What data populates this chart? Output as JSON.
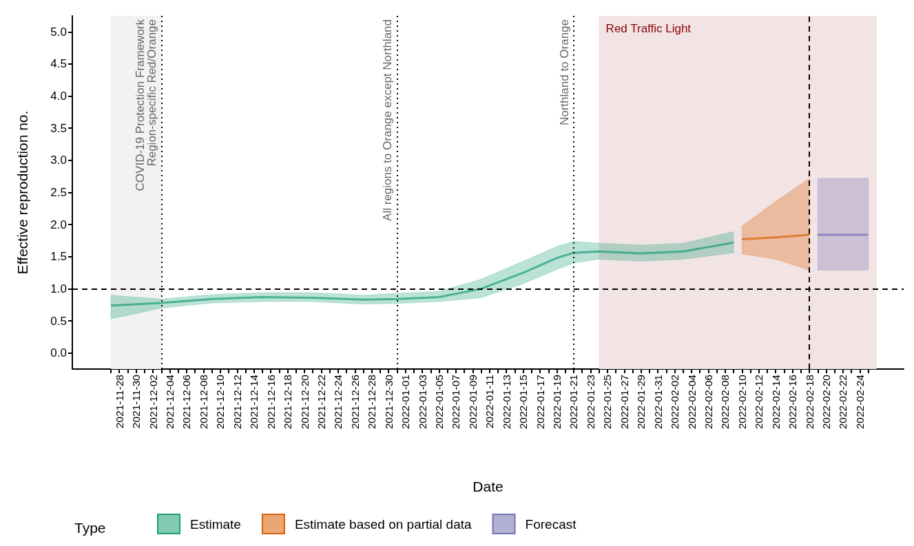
{
  "chart_data": {
    "type": "line",
    "xlabel": "Date",
    "ylabel": "Effective reproduction no.",
    "legend_title": "Type",
    "legend": "bottom",
    "grid": false,
    "xlim": [
      "2021-11-22T10:00",
      "2022-03-01T05:00"
    ],
    "ylim": [
      -0.25,
      5.25
    ],
    "yticks": [
      {
        "value": 0,
        "label": "0.0"
      },
      {
        "value": 0.5,
        "label": "0.5"
      },
      {
        "value": 1,
        "label": "1.0"
      },
      {
        "value": 1.5,
        "label": "1.5"
      },
      {
        "value": 2,
        "label": "2.0"
      },
      {
        "value": 2.5,
        "label": "2.5"
      },
      {
        "value": 3,
        "label": "3.0"
      },
      {
        "value": 3.5,
        "label": "3.5"
      },
      {
        "value": 4,
        "label": "4.0"
      },
      {
        "value": 4.5,
        "label": "4.5"
      },
      {
        "value": 5,
        "label": "5.0"
      }
    ],
    "xticks": [
      {
        "value": "2021-11-27",
        "label": null
      },
      "2021-11-28",
      {
        "value": "2021-11-29",
        "label": null
      },
      "2021-11-30",
      {
        "value": "2021-12-01",
        "label": null
      },
      "2021-12-02",
      {
        "value": "2021-12-03",
        "label": null
      },
      "2021-12-04",
      {
        "value": "2021-12-05",
        "label": null
      },
      "2021-12-06",
      {
        "value": "2021-12-07",
        "label": null
      },
      "2021-12-08",
      {
        "value": "2021-12-09",
        "label": null
      },
      "2021-12-10",
      {
        "value": "2021-12-11",
        "label": null
      },
      "2021-12-12",
      {
        "value": "2021-12-13",
        "label": null
      },
      "2021-12-14",
      {
        "value": "2021-12-15",
        "label": null
      },
      "2021-12-16",
      {
        "value": "2021-12-17",
        "label": null
      },
      "2021-12-18",
      {
        "value": "2021-12-19",
        "label": null
      },
      "2021-12-20",
      {
        "value": "2021-12-21",
        "label": null
      },
      "2021-12-22",
      {
        "value": "2021-12-23",
        "label": null
      },
      "2021-12-24",
      {
        "value": "2021-12-25",
        "label": null
      },
      "2021-12-26",
      {
        "value": "2021-12-27",
        "label": null
      },
      "2021-12-28",
      {
        "value": "2021-12-29",
        "label": null
      },
      "2021-12-30",
      {
        "value": "2021-12-31",
        "label": null
      },
      "2022-01-01",
      {
        "value": "2022-01-02",
        "label": null
      },
      "2022-01-03",
      {
        "value": "2022-01-04",
        "label": null
      },
      "2022-01-05",
      {
        "value": "2022-01-06",
        "label": null
      },
      "2022-01-07",
      {
        "value": "2022-01-08",
        "label": null
      },
      "2022-01-09",
      {
        "value": "2022-01-10",
        "label": null
      },
      "2022-01-11",
      {
        "value": "2022-01-12",
        "label": null
      },
      "2022-01-13",
      {
        "value": "2022-01-14",
        "label": null
      },
      "2022-01-15",
      {
        "value": "2022-01-16",
        "label": null
      },
      "2022-01-17",
      {
        "value": "2022-01-18",
        "label": null
      },
      "2022-01-19",
      {
        "value": "2022-01-20",
        "label": null
      },
      "2022-01-21",
      {
        "value": "2022-01-22",
        "label": null
      },
      "2022-01-23",
      {
        "value": "2022-01-24",
        "label": null
      },
      "2022-01-25",
      {
        "value": "2022-01-26",
        "label": null
      },
      "2022-01-27",
      {
        "value": "2022-01-28",
        "label": null
      },
      "2022-01-29",
      {
        "value": "2022-01-30",
        "label": null
      },
      "2022-01-31",
      {
        "value": "2022-02-01",
        "label": null
      },
      "2022-02-02",
      {
        "value": "2022-02-03",
        "label": null
      },
      "2022-02-04",
      {
        "value": "2022-02-05",
        "label": null
      },
      "2022-02-06",
      {
        "value": "2022-02-07",
        "label": null
      },
      "2022-02-08",
      {
        "value": "2022-02-09",
        "label": null
      },
      "2022-02-10",
      {
        "value": "2022-02-11",
        "label": null
      },
      "2022-02-12",
      {
        "value": "2022-02-13",
        "label": null
      },
      "2022-02-14",
      {
        "value": "2022-02-15",
        "label": null
      },
      "2022-02-16",
      {
        "value": "2022-02-17",
        "label": null
      },
      "2022-02-18",
      {
        "value": "2022-02-19",
        "label": null
      },
      "2022-02-20",
      {
        "value": "2022-02-21",
        "label": null
      },
      "2022-02-22",
      {
        "value": "2022-02-23",
        "label": null
      },
      "2022-02-24",
      {
        "value": "2022-02-25",
        "label": null
      }
    ],
    "series": [
      {
        "name": "Estimate",
        "type": "line",
        "color": "#1b9e77",
        "x": [
          "2021-11-27",
          "2021-12-03",
          "2021-12-09",
          "2021-12-15",
          "2021-12-21",
          "2021-12-27",
          "2021-12-31",
          "2022-01-05",
          "2022-01-10",
          "2022-01-15",
          "2022-01-19",
          "2022-01-21",
          "2022-01-24",
          "2022-01-29",
          "2022-02-03",
          "2022-02-09"
        ],
        "values": [
          0.74,
          0.78,
          0.84,
          0.87,
          0.86,
          0.83,
          0.84,
          0.87,
          1.0,
          1.25,
          1.48,
          1.56,
          1.58,
          1.55,
          1.58,
          1.72
        ],
        "lower": [
          0.53,
          0.7,
          0.78,
          0.8,
          0.8,
          0.76,
          0.77,
          0.8,
          0.86,
          1.08,
          1.3,
          1.4,
          1.46,
          1.43,
          1.46,
          1.56
        ],
        "upper": [
          0.9,
          0.84,
          0.91,
          0.94,
          0.94,
          0.9,
          0.93,
          0.96,
          1.15,
          1.43,
          1.66,
          1.74,
          1.71,
          1.68,
          1.71,
          1.89
        ]
      },
      {
        "name": "Estimate based on partial data",
        "type": "line",
        "color": "#d95f02",
        "x": [
          "2022-02-10",
          "2022-02-14",
          "2022-02-18"
        ],
        "values": [
          1.77,
          1.8,
          1.84
        ],
        "lower": [
          1.54,
          1.46,
          1.29
        ],
        "upper": [
          1.98,
          2.36,
          2.72
        ]
      },
      {
        "name": "Forecast",
        "type": "line",
        "color": "#7570b3",
        "x": [
          "2022-02-19",
          "2022-02-25"
        ],
        "values": [
          1.84,
          1.84
        ],
        "lower": [
          1.29,
          1.29
        ],
        "upper": [
          2.72,
          2.72
        ]
      }
    ],
    "ref_lines": [
      {
        "axis": "y",
        "value": 1,
        "line_style": "dashed",
        "color": "#000000"
      },
      {
        "axis": "x",
        "value": "2021-12-03",
        "label": "COVID-19 Protection Framework\nRegion-specific Red/Orange",
        "line_style": "dotted",
        "color": "#000000"
      },
      {
        "axis": "x",
        "value": "2021-12-31",
        "label": "All regions to Orange except Northland",
        "line_style": "dotted",
        "color": "#000000"
      },
      {
        "axis": "x",
        "value": "2022-01-21",
        "label": "Northland to Orange",
        "line_style": "dotted",
        "color": "#000000"
      },
      {
        "axis": "x",
        "value": "2022-02-18",
        "line_style": "dashed",
        "color": "#000000"
      }
    ],
    "bands": [
      {
        "axis": "x",
        "from": "2021-11-27",
        "to": "2021-12-03",
        "color": "#f2f2f2"
      },
      {
        "axis": "x",
        "from": "2022-01-24",
        "to": "2022-02-26",
        "label": "Red Traffic Light",
        "color": "#f2e3e4"
      }
    ]
  }
}
